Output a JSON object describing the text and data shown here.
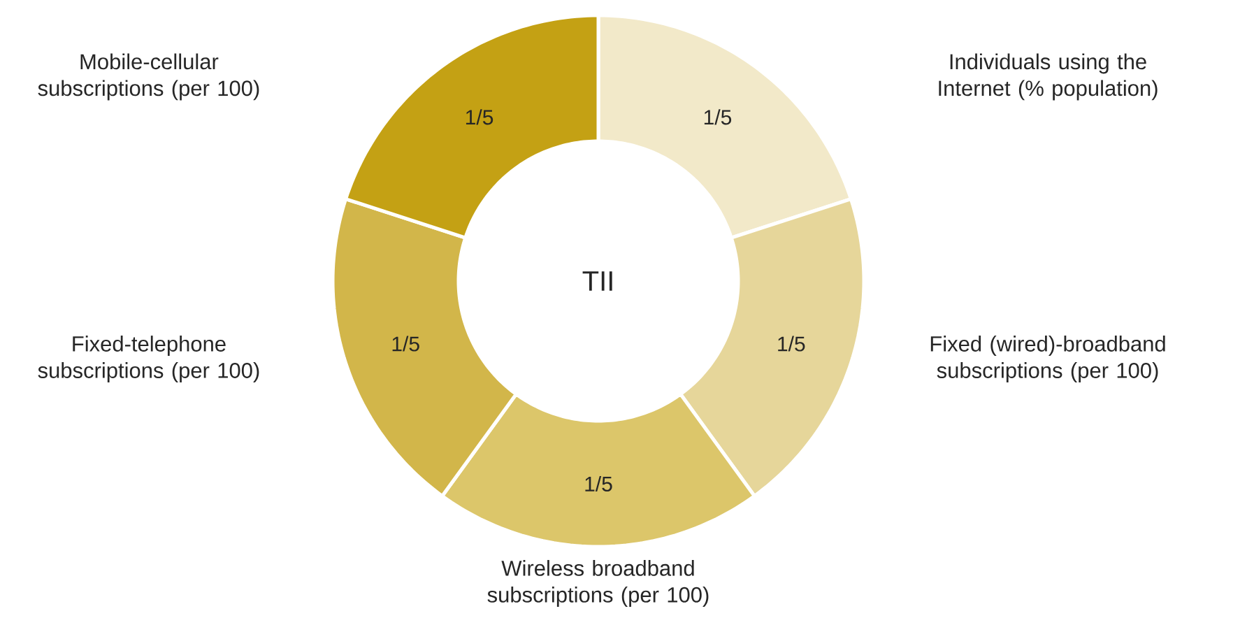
{
  "chart_data": {
    "type": "donut",
    "categories": [
      "Individuals using the Internet (% population)",
      "Fixed (wired)-broadband subscriptions (per 100)",
      "Wireless broadband subscriptions (per 100)",
      "Fixed-telephone subscriptions (per 100)",
      "Mobile-cellular subscriptions (per 100)"
    ],
    "values": [
      0.2,
      0.2,
      0.2,
      0.2,
      0.2
    ],
    "colors": [
      "#f2e9c9",
      "#e6d69a",
      "#dcc66a",
      "#d2b64a",
      "#c4a114"
    ],
    "value_labels": [
      "1/5",
      "1/5",
      "1/5",
      "1/5",
      "1/5"
    ],
    "annotations": [
      "TII"
    ]
  }
}
